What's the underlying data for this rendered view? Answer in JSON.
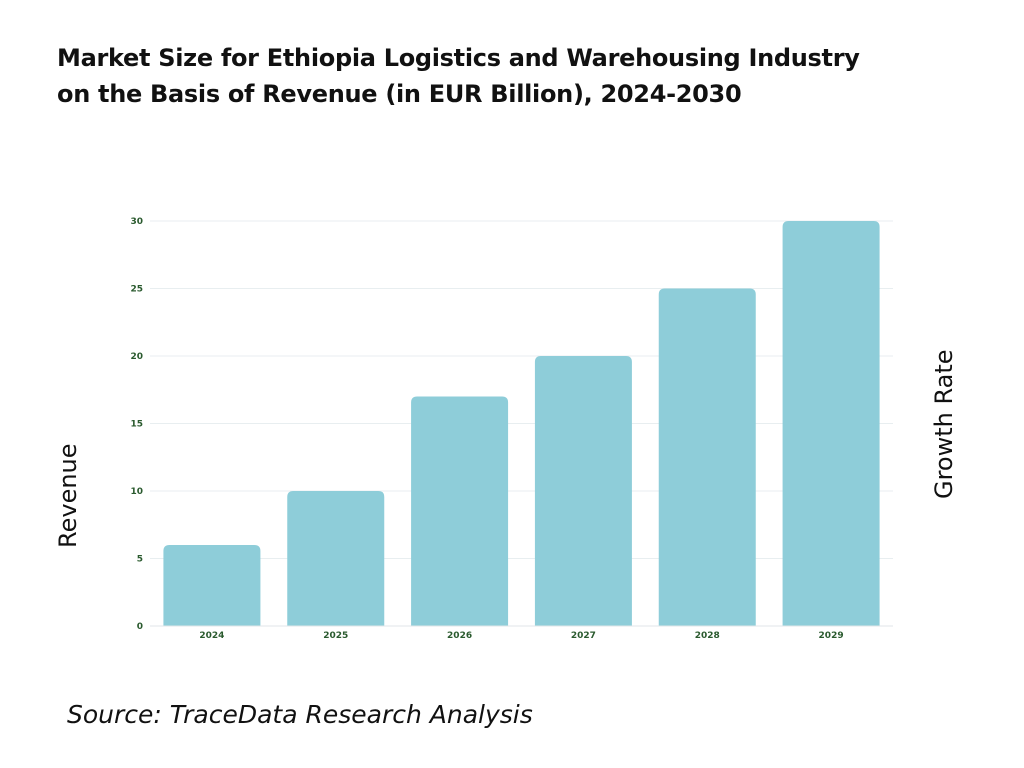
{
  "title_line1": "Market Size for Ethiopia Logistics and Warehousing Industry",
  "title_line2": "on the Basis of Revenue (in EUR Billion), 2024-2030",
  "source": "Source: TraceData Research Analysis",
  "colors": {
    "bar": "#8ecdd9",
    "tick_text": "#2a5a2e",
    "grid": "#e8eef0"
  },
  "chart_data": {
    "type": "bar",
    "title": "Market Size for Ethiopia Logistics and Warehousing Industry on the Basis of Revenue (in EUR Billion), 2024-2030",
    "categories": [
      "2024",
      "2025",
      "2026",
      "2027",
      "2028",
      "2029"
    ],
    "values": [
      6,
      10,
      17,
      20,
      25,
      30
    ],
    "xlabel": "",
    "ylabel": "Revenue",
    "ylabel_right": "Growth Rate",
    "ylim": [
      0,
      30
    ],
    "yticks": [
      0,
      5,
      10,
      15,
      20,
      25,
      30
    ],
    "grid": true,
    "legend": "none"
  }
}
